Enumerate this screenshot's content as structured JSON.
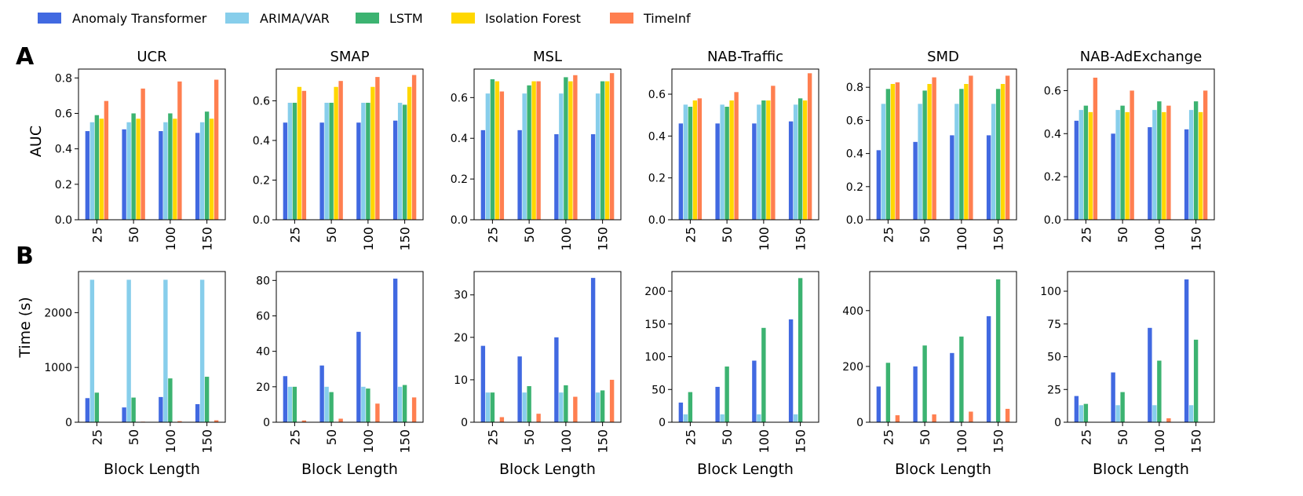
{
  "legend": [
    {
      "name": "Anomaly Transformer",
      "color": "#4169e1"
    },
    {
      "name": "ARIMA/VAR",
      "color": "#87ceeb"
    },
    {
      "name": "LSTM",
      "color": "#3cb371"
    },
    {
      "name": "Isolation Forest",
      "color": "#ffd700"
    },
    {
      "name": "TimeInf",
      "color": "#ff7f50"
    }
  ],
  "panel_labels": {
    "a": "A",
    "b": "B"
  },
  "row_a_ylabel": "AUC",
  "row_b_ylabel": "Time (s)",
  "xlabel": "Block Length",
  "chart_data": [
    {
      "panel": "A",
      "title": "UCR",
      "type": "bar",
      "categories": [
        "25",
        "50",
        "100",
        "150"
      ],
      "ylim": [
        0,
        0.85
      ],
      "yticks": [
        0.0,
        0.2,
        0.4,
        0.6,
        0.8
      ],
      "tick_decimals": 1,
      "series": [
        {
          "name": "Anomaly Transformer",
          "values": [
            0.5,
            0.51,
            0.5,
            0.49
          ]
        },
        {
          "name": "ARIMA/VAR",
          "values": [
            0.55,
            0.55,
            0.55,
            0.55
          ]
        },
        {
          "name": "LSTM",
          "values": [
            0.59,
            0.6,
            0.6,
            0.61
          ]
        },
        {
          "name": "Isolation Forest",
          "values": [
            0.57,
            0.57,
            0.57,
            0.57
          ]
        },
        {
          "name": "TimeInf",
          "values": [
            0.67,
            0.74,
            0.78,
            0.79
          ]
        }
      ]
    },
    {
      "panel": "A",
      "title": "SMAP",
      "type": "bar",
      "categories": [
        "25",
        "50",
        "100",
        "150"
      ],
      "ylim": [
        0,
        0.76
      ],
      "yticks": [
        0.0,
        0.2,
        0.4,
        0.6
      ],
      "tick_decimals": 1,
      "series": [
        {
          "name": "Anomaly Transformer",
          "values": [
            0.49,
            0.49,
            0.49,
            0.5
          ]
        },
        {
          "name": "ARIMA/VAR",
          "values": [
            0.59,
            0.59,
            0.59,
            0.59
          ]
        },
        {
          "name": "LSTM",
          "values": [
            0.59,
            0.59,
            0.59,
            0.58
          ]
        },
        {
          "name": "Isolation Forest",
          "values": [
            0.67,
            0.67,
            0.67,
            0.67
          ]
        },
        {
          "name": "TimeInf",
          "values": [
            0.65,
            0.7,
            0.72,
            0.73
          ]
        }
      ]
    },
    {
      "panel": "A",
      "title": "MSL",
      "type": "bar",
      "categories": [
        "25",
        "50",
        "100",
        "150"
      ],
      "ylim": [
        0,
        0.74
      ],
      "yticks": [
        0.0,
        0.2,
        0.4,
        0.6
      ],
      "tick_decimals": 1,
      "series": [
        {
          "name": "Anomaly Transformer",
          "values": [
            0.44,
            0.44,
            0.42,
            0.42
          ]
        },
        {
          "name": "ARIMA/VAR",
          "values": [
            0.62,
            0.62,
            0.62,
            0.62
          ]
        },
        {
          "name": "LSTM",
          "values": [
            0.69,
            0.66,
            0.7,
            0.68
          ]
        },
        {
          "name": "Isolation Forest",
          "values": [
            0.68,
            0.68,
            0.68,
            0.68
          ]
        },
        {
          "name": "TimeInf",
          "values": [
            0.63,
            0.68,
            0.71,
            0.72
          ]
        }
      ]
    },
    {
      "panel": "A",
      "title": "NAB-Traffic",
      "type": "bar",
      "categories": [
        "25",
        "50",
        "100",
        "150"
      ],
      "ylim": [
        0,
        0.72
      ],
      "yticks": [
        0.0,
        0.2,
        0.4,
        0.6
      ],
      "tick_decimals": 1,
      "series": [
        {
          "name": "Anomaly Transformer",
          "values": [
            0.46,
            0.46,
            0.46,
            0.47
          ]
        },
        {
          "name": "ARIMA/VAR",
          "values": [
            0.55,
            0.55,
            0.55,
            0.55
          ]
        },
        {
          "name": "LSTM",
          "values": [
            0.54,
            0.54,
            0.57,
            0.58
          ]
        },
        {
          "name": "Isolation Forest",
          "values": [
            0.57,
            0.57,
            0.57,
            0.57
          ]
        },
        {
          "name": "TimeInf",
          "values": [
            0.58,
            0.61,
            0.64,
            0.7
          ]
        }
      ]
    },
    {
      "panel": "A",
      "title": "SMD",
      "type": "bar",
      "categories": [
        "25",
        "50",
        "100",
        "150"
      ],
      "ylim": [
        0,
        0.91
      ],
      "yticks": [
        0.0,
        0.2,
        0.4,
        0.6,
        0.8
      ],
      "tick_decimals": 1,
      "series": [
        {
          "name": "Anomaly Transformer",
          "values": [
            0.42,
            0.47,
            0.51,
            0.51
          ]
        },
        {
          "name": "ARIMA/VAR",
          "values": [
            0.7,
            0.7,
            0.7,
            0.7
          ]
        },
        {
          "name": "LSTM",
          "values": [
            0.79,
            0.78,
            0.79,
            0.79
          ]
        },
        {
          "name": "Isolation Forest",
          "values": [
            0.82,
            0.82,
            0.82,
            0.82
          ]
        },
        {
          "name": "TimeInf",
          "values": [
            0.83,
            0.86,
            0.87,
            0.87
          ]
        }
      ]
    },
    {
      "panel": "A",
      "title": "NAB-AdExchange",
      "type": "bar",
      "categories": [
        "25",
        "50",
        "100",
        "150"
      ],
      "ylim": [
        0,
        0.7
      ],
      "yticks": [
        0.0,
        0.2,
        0.4,
        0.6
      ],
      "tick_decimals": 1,
      "series": [
        {
          "name": "Anomaly Transformer",
          "values": [
            0.46,
            0.4,
            0.43,
            0.42
          ]
        },
        {
          "name": "ARIMA/VAR",
          "values": [
            0.51,
            0.51,
            0.51,
            0.51
          ]
        },
        {
          "name": "LSTM",
          "values": [
            0.53,
            0.53,
            0.55,
            0.55
          ]
        },
        {
          "name": "Isolation Forest",
          "values": [
            0.5,
            0.5,
            0.5,
            0.5
          ]
        },
        {
          "name": "TimeInf",
          "values": [
            0.66,
            0.6,
            0.53,
            0.6
          ]
        }
      ]
    },
    {
      "panel": "B",
      "title": "",
      "type": "bar",
      "categories": [
        "25",
        "50",
        "100",
        "150"
      ],
      "ylim": [
        0,
        2750
      ],
      "yticks": [
        0,
        1000,
        2000
      ],
      "tick_decimals": 0,
      "series": [
        {
          "name": "Anomaly Transformer",
          "values": [
            440,
            270,
            460,
            330
          ]
        },
        {
          "name": "ARIMA/VAR",
          "values": [
            2600,
            2600,
            2600,
            2600
          ]
        },
        {
          "name": "LSTM",
          "values": [
            540,
            450,
            800,
            830
          ]
        },
        {
          "name": "Isolation Forest",
          "values": [
            0,
            0,
            0,
            0
          ]
        },
        {
          "name": "TimeInf",
          "values": [
            5,
            10,
            20,
            35
          ]
        }
      ]
    },
    {
      "panel": "B",
      "title": "",
      "type": "bar",
      "categories": [
        "25",
        "50",
        "100",
        "150"
      ],
      "ylim": [
        0,
        85
      ],
      "yticks": [
        0,
        20,
        40,
        60,
        80
      ],
      "tick_decimals": 0,
      "series": [
        {
          "name": "Anomaly Transformer",
          "values": [
            26,
            32,
            51,
            81
          ]
        },
        {
          "name": "ARIMA/VAR",
          "values": [
            20,
            20,
            20,
            20
          ]
        },
        {
          "name": "LSTM",
          "values": [
            20,
            17,
            19,
            21
          ]
        },
        {
          "name": "Isolation Forest",
          "values": [
            0,
            0,
            0,
            0
          ]
        },
        {
          "name": "TimeInf",
          "values": [
            1,
            2,
            10.5,
            14
          ]
        }
      ]
    },
    {
      "panel": "B",
      "title": "",
      "type": "bar",
      "categories": [
        "25",
        "50",
        "100",
        "150"
      ],
      "ylim": [
        0,
        35.5
      ],
      "yticks": [
        0,
        10,
        20,
        30
      ],
      "tick_decimals": 0,
      "series": [
        {
          "name": "Anomaly Transformer",
          "values": [
            18,
            15.5,
            20,
            34
          ]
        },
        {
          "name": "ARIMA/VAR",
          "values": [
            7,
            7,
            7,
            7
          ]
        },
        {
          "name": "LSTM",
          "values": [
            7,
            8.5,
            8.7,
            7.5
          ]
        },
        {
          "name": "Isolation Forest",
          "values": [
            0,
            0,
            0,
            0
          ]
        },
        {
          "name": "TimeInf",
          "values": [
            1.2,
            2,
            6,
            10
          ]
        }
      ]
    },
    {
      "panel": "B",
      "title": "",
      "type": "bar",
      "categories": [
        "25",
        "50",
        "100",
        "150"
      ],
      "ylim": [
        0,
        230
      ],
      "yticks": [
        0,
        50,
        100,
        150,
        200
      ],
      "tick_decimals": 0,
      "series": [
        {
          "name": "Anomaly Transformer",
          "values": [
            30,
            54,
            94,
            157
          ]
        },
        {
          "name": "ARIMA/VAR",
          "values": [
            12,
            12,
            12,
            12
          ]
        },
        {
          "name": "LSTM",
          "values": [
            46,
            85,
            144,
            220
          ]
        },
        {
          "name": "Isolation Forest",
          "values": [
            0,
            0,
            0,
            0
          ]
        },
        {
          "name": "TimeInf",
          "values": [
            0,
            0,
            0,
            0
          ]
        }
      ]
    },
    {
      "panel": "B",
      "title": "",
      "type": "bar",
      "categories": [
        "25",
        "50",
        "100",
        "150"
      ],
      "ylim": [
        0,
        540
      ],
      "yticks": [
        0,
        200,
        400
      ],
      "tick_decimals": 0,
      "series": [
        {
          "name": "Anomaly Transformer",
          "values": [
            128,
            200,
            248,
            380
          ]
        },
        {
          "name": "ARIMA/VAR",
          "values": [
            3,
            3,
            3,
            3
          ]
        },
        {
          "name": "LSTM",
          "values": [
            213,
            275,
            307,
            512
          ]
        },
        {
          "name": "Isolation Forest",
          "values": [
            0,
            0,
            0,
            0
          ]
        },
        {
          "name": "TimeInf",
          "values": [
            25,
            28,
            38,
            48
          ]
        }
      ]
    },
    {
      "panel": "B",
      "title": "",
      "type": "bar",
      "categories": [
        "25",
        "50",
        "100",
        "150"
      ],
      "ylim": [
        0,
        115
      ],
      "yticks": [
        0,
        25,
        50,
        75,
        100
      ],
      "tick_decimals": 0,
      "series": [
        {
          "name": "Anomaly Transformer",
          "values": [
            20,
            38,
            72,
            109
          ]
        },
        {
          "name": "ARIMA/VAR",
          "values": [
            13,
            13,
            13,
            13
          ]
        },
        {
          "name": "LSTM",
          "values": [
            14,
            23,
            47,
            63
          ]
        },
        {
          "name": "Isolation Forest",
          "values": [
            0,
            0,
            0,
            0
          ]
        },
        {
          "name": "TimeInf",
          "values": [
            0,
            0,
            3,
            0
          ]
        }
      ]
    }
  ]
}
